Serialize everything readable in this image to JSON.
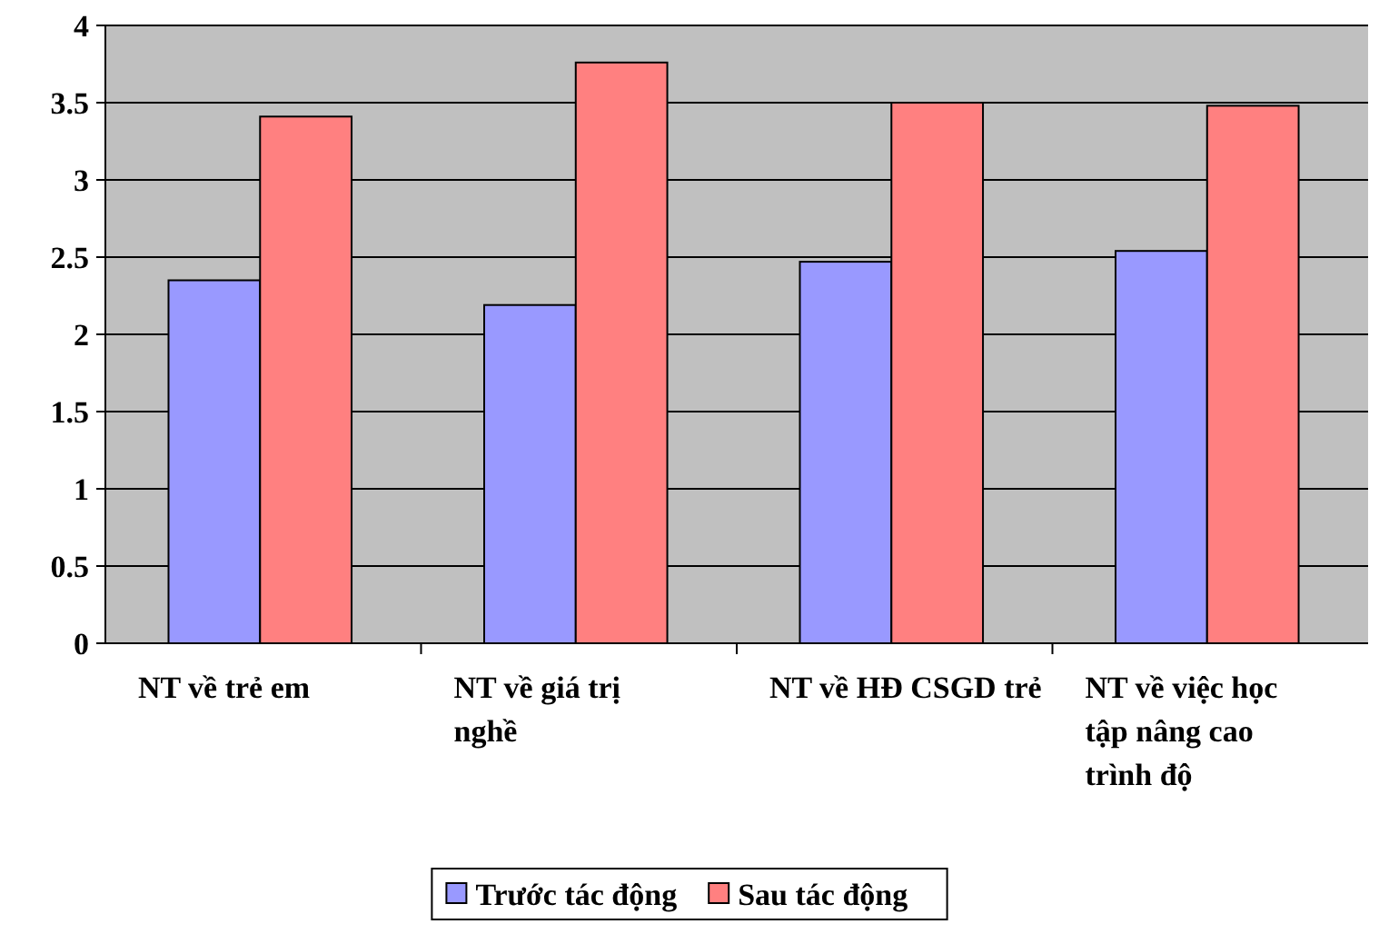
{
  "chart_data": {
    "type": "bar",
    "categories": [
      "NT về trẻ em",
      "NT về giá trị nghề",
      "NT về HĐ CSGD trẻ",
      "NT về việc học tập nâng cao trình độ"
    ],
    "series": [
      {
        "name": "Trước tác động",
        "color": "#9999ff",
        "values": [
          2.35,
          2.19,
          2.47,
          2.54
        ]
      },
      {
        "name": "Sau tác động",
        "color": "#ff8080",
        "values": [
          3.41,
          3.76,
          3.5,
          3.48
        ]
      }
    ],
    "ylim": [
      0,
      4
    ],
    "yticks": [
      0,
      0.5,
      1,
      1.5,
      2,
      2.5,
      3,
      3.5,
      4
    ],
    "grid": "y",
    "legend": "bottom"
  }
}
